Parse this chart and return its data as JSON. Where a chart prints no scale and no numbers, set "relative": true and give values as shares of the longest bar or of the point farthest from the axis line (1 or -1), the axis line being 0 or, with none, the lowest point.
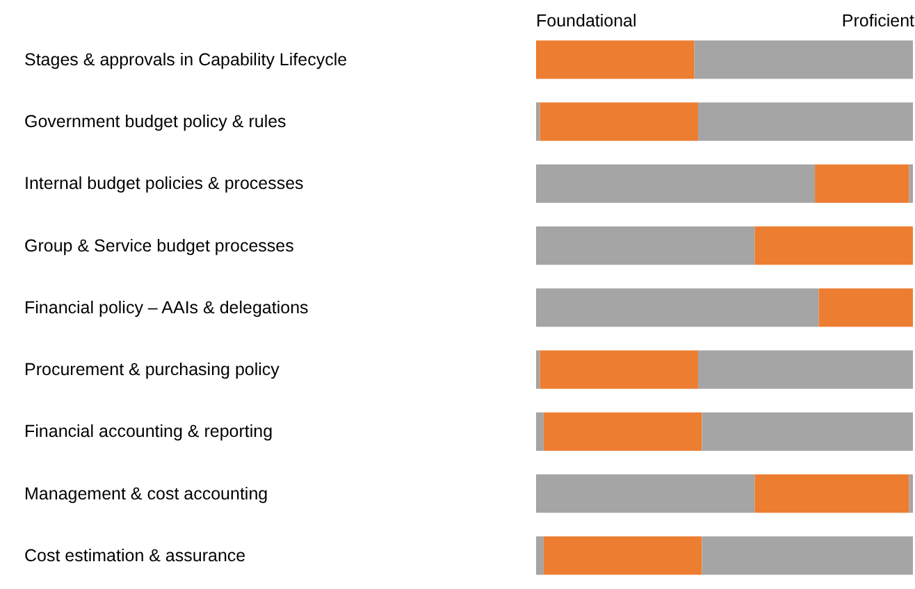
{
  "chart_data": {
    "type": "bar",
    "orientation": "horizontal",
    "stacked": true,
    "relative": true,
    "categories": [
      "Stages & approvals in Capability Lifecycle",
      "Government budget policy & rules",
      "Internal budget policies & processes",
      "Group & Service budget processes",
      "Financial policy – AAIs & delegations",
      "Procurement & purchasing policy",
      "Financial accounting & reporting",
      "Management & cost accounting",
      "Cost estimation & assurance"
    ],
    "series": [
      {
        "color": "#a5a5a5",
        "values": [
          0,
          0.01,
          0.74,
          0.58,
          0.75,
          0.01,
          0.02,
          0.58,
          0.02
        ]
      },
      {
        "color": "#ed7d31",
        "values": [
          0.42,
          0.42,
          0.25,
          0.42,
          0.25,
          0.42,
          0.42,
          0.41,
          0.42
        ]
      },
      {
        "color": "#a5a5a5",
        "values": [
          0.58,
          0.57,
          0.01,
          0,
          0,
          0.57,
          0.56,
          0.01,
          0.56
        ]
      }
    ],
    "annotations": [
      "Foundational",
      "Proficient"
    ],
    "grid": false
  }
}
